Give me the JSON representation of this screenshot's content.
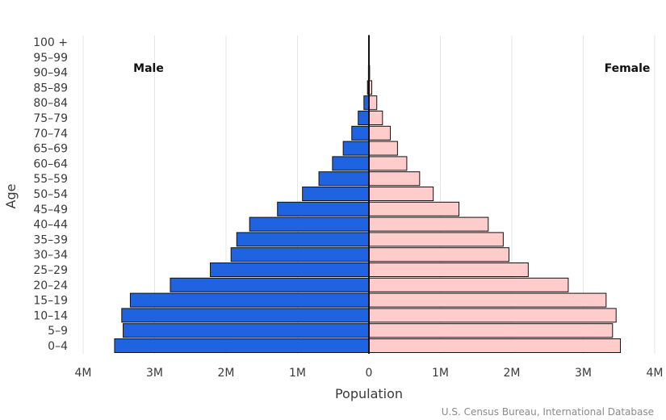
{
  "chart_data": {
    "type": "bar",
    "subtype": "population-pyramid",
    "orientation": "horizontal",
    "title": "",
    "xlabel": "Population",
    "ylabel": "Age",
    "xlim": [
      -4000000,
      4000000
    ],
    "x_ticks": [
      -4000000,
      -3000000,
      -2000000,
      -1000000,
      0,
      1000000,
      2000000,
      3000000,
      4000000
    ],
    "x_tick_labels": [
      "4M",
      "3M",
      "2M",
      "1M",
      "0",
      "1M",
      "2M",
      "3M",
      "4M"
    ],
    "grid": true,
    "categories": [
      "0-4",
      "5-9",
      "10-14",
      "15-19",
      "20-24",
      "25-29",
      "30-34",
      "35-39",
      "40-44",
      "45-49",
      "50-54",
      "55-59",
      "60-64",
      "65-69",
      "70-74",
      "75-79",
      "80-84",
      "85-89",
      "90-94",
      "95-99",
      "100 +"
    ],
    "series": [
      {
        "name": "Male",
        "color": "#1f63e0",
        "values": [
          3560000,
          3440000,
          3460000,
          3340000,
          2780000,
          2220000,
          1930000,
          1850000,
          1670000,
          1280000,
          930000,
          700000,
          510000,
          360000,
          240000,
          150000,
          70000,
          20000,
          7000,
          2000,
          500
        ]
      },
      {
        "name": "Female",
        "color": "#ffcccc",
        "values": [
          3520000,
          3410000,
          3460000,
          3320000,
          2790000,
          2230000,
          1960000,
          1880000,
          1670000,
          1260000,
          900000,
          710000,
          530000,
          400000,
          300000,
          190000,
          110000,
          40000,
          10000,
          2000,
          500
        ]
      }
    ],
    "source": "U.S. Census Bureau, International Database"
  }
}
